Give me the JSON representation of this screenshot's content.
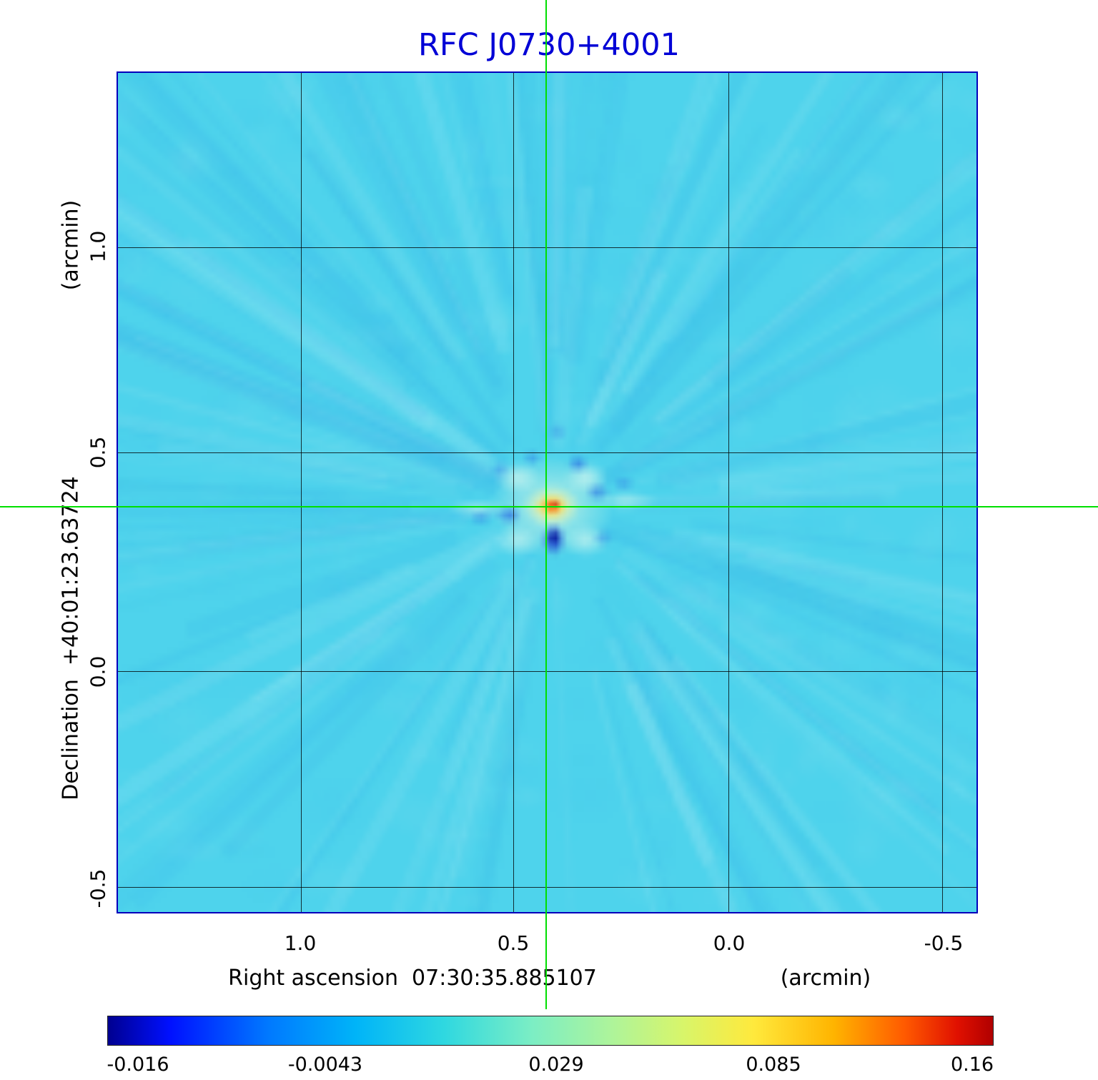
{
  "title": "RFC J0730+4001",
  "axes": {
    "y_unit": "(arcmin)",
    "y_label": "Declination  +40:01:23.63724",
    "x_label": "Right ascension  07:30:35.885107",
    "x_unit": "(arcmin)",
    "x_tick_labels": [
      "1.0",
      "0.5",
      "0.0",
      "-0.5"
    ],
    "y_tick_labels": [
      "1.0",
      "0.5",
      "0.0",
      "-0.5"
    ]
  },
  "colorbar": {
    "tick_labels": [
      "-0.016",
      "-0.0043",
      "0.029",
      "0.085",
      "0.16"
    ],
    "gradient_stops": [
      [
        "#000090",
        0
      ],
      [
        "#0010ff",
        7
      ],
      [
        "#0078ff",
        18
      ],
      [
        "#00b4f8",
        28
      ],
      [
        "#2fd8e0",
        38
      ],
      [
        "#7ceec4",
        48
      ],
      [
        "#aef49a",
        57
      ],
      [
        "#d8f56a",
        65
      ],
      [
        "#ffe93c",
        73
      ],
      [
        "#ffb400",
        82
      ],
      [
        "#ff5a00",
        90
      ],
      [
        "#e01000",
        96
      ],
      [
        "#b00000",
        100
      ]
    ]
  },
  "chart_data": {
    "type": "heatmap",
    "title": "RFC J0730+4001",
    "xlabel": "Right ascension 07:30:35.885107 (arcmin)",
    "ylabel": "Declination +40:01:23.63724 (arcmin)",
    "x_ticks_arcmin": [
      1.0,
      0.5,
      0.0,
      -0.5
    ],
    "y_ticks_arcmin": [
      1.0,
      0.5,
      0.0,
      -0.5
    ],
    "x_range_arcmin": [
      1.43,
      -0.58
    ],
    "y_range_arcmin": [
      -0.56,
      1.41
    ],
    "grid": true,
    "colorbar_ticks": [
      -0.016,
      -0.0043,
      0.029,
      0.085,
      0.16
    ],
    "colorbar_range": [
      -0.016,
      0.16
    ],
    "colormap": "rainbow: navy-blue-cyan-green-yellow-orange-red",
    "background_level": 0.0,
    "peak": {
      "x_arcmin": 0.42,
      "y_arcmin": 0.37,
      "value": 0.16
    },
    "negative_sidelobe_below_peak": -0.016,
    "crosshair_arcmin": {
      "x": 0.42,
      "y": 0.37
    },
    "description": "Radio interferometric image of compact source RFC J0730+4001: cyan zero-level background with faint radial sidelobe rays, bright red/yellow point source at crosshair, dark blue negative sidelobe immediately below the peak."
  },
  "colors": {
    "title_blue": "#0000d6",
    "frame_blue": "#0000bb",
    "crosshair_green": "#00df00",
    "background_cyan": "#4ed3ec",
    "grid": "#141414"
  }
}
